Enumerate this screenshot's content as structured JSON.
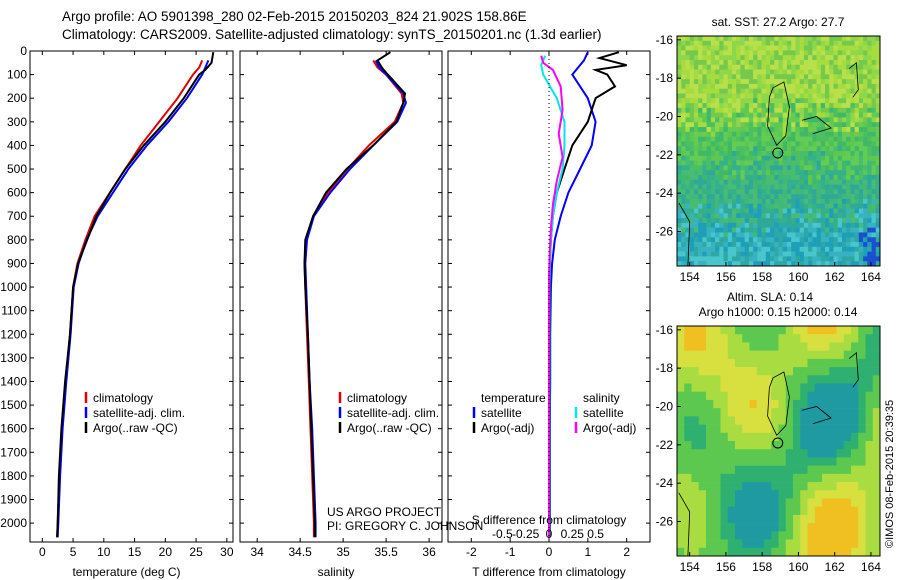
{
  "header": {
    "line1": "Argo profile: AO 5901398_280 02-Feb-2015 20150203_824 21.902S 158.86E",
    "line2": "Climatology: CARS2009. Satellite-adjusted climatology: synTS_20150201.nc (1.3d earlier)"
  },
  "colors": {
    "climatology": "#e00000",
    "satellite": "#0000ff",
    "argo": "#000000",
    "satellite_salinity": "#00e5ee",
    "argo_salinity": "#ff00ff"
  },
  "chart_data": [
    {
      "type": "line",
      "panel": "temperature",
      "xlabel": "temperature (deg C)",
      "ylabel": "",
      "xlim": [
        -2,
        31
      ],
      "ylim": [
        2080,
        0
      ],
      "xticks": [
        0,
        5,
        10,
        15,
        20,
        25,
        30
      ],
      "yticks": [
        0,
        100,
        200,
        300,
        400,
        500,
        600,
        700,
        800,
        900,
        1000,
        1100,
        1200,
        1300,
        1400,
        1500,
        1600,
        1700,
        1800,
        1900,
        2000
      ],
      "legend": [
        "climatology",
        "satellite-adj. clim.",
        "Argo(..raw -QC)"
      ],
      "series": [
        {
          "name": "climatology",
          "color": "#e00000",
          "points": [
            [
              26,
              40
            ],
            [
              25.5,
              70
            ],
            [
              24.5,
              100
            ],
            [
              22,
              200
            ],
            [
              19,
              300
            ],
            [
              16,
              400
            ],
            [
              13.5,
              500
            ],
            [
              11,
              600
            ],
            [
              8.5,
              700
            ],
            [
              7,
              800
            ],
            [
              5.7,
              900
            ],
            [
              5,
              1000
            ],
            [
              4.5,
              1200
            ],
            [
              3.8,
              1400
            ],
            [
              3.2,
              1600
            ],
            [
              2.8,
              1800
            ],
            [
              2.5,
              2000
            ],
            [
              2.4,
              2060
            ]
          ]
        },
        {
          "name": "satellite-adj. clim.",
          "color": "#0000ff",
          "points": [
            [
              27,
              40
            ],
            [
              26.5,
              70
            ],
            [
              26,
              100
            ],
            [
              23.5,
              200
            ],
            [
              20.5,
              300
            ],
            [
              17,
              400
            ],
            [
              14,
              500
            ],
            [
              11.5,
              600
            ],
            [
              9,
              700
            ],
            [
              7.2,
              800
            ],
            [
              5.9,
              900
            ],
            [
              5.1,
              1000
            ],
            [
              4.6,
              1200
            ],
            [
              3.9,
              1400
            ],
            [
              3.3,
              1600
            ],
            [
              2.9,
              1800
            ],
            [
              2.6,
              2000
            ],
            [
              2.5,
              2060
            ]
          ]
        },
        {
          "name": "Argo(..raw -QC)",
          "color": "#000000",
          "points": [
            [
              27.8,
              5
            ],
            [
              27.5,
              50
            ],
            [
              26.5,
              80
            ],
            [
              25.5,
              100
            ],
            [
              23,
              200
            ],
            [
              20,
              300
            ],
            [
              16.5,
              400
            ],
            [
              13.5,
              500
            ],
            [
              11,
              600
            ],
            [
              8.8,
              700
            ],
            [
              7.3,
              800
            ],
            [
              5.8,
              900
            ],
            [
              5.0,
              1000
            ],
            [
              4.5,
              1200
            ],
            [
              3.7,
              1400
            ],
            [
              3.1,
              1600
            ],
            [
              2.7,
              1800
            ],
            [
              2.5,
              2000
            ],
            [
              2.4,
              2060
            ]
          ]
        }
      ]
    },
    {
      "type": "line",
      "panel": "salinity",
      "xlabel": "salinity",
      "ylabel": "",
      "xlim": [
        33.8,
        36.15
      ],
      "ylim": [
        2080,
        0
      ],
      "xticks": [
        34,
        34.5,
        35,
        35.5,
        36
      ],
      "legend": [
        "climatology",
        "satellite-adj. clim.",
        "Argo(..raw -QC)"
      ],
      "series": [
        {
          "name": "climatology",
          "color": "#e00000",
          "points": [
            [
              35.35,
              40
            ],
            [
              35.4,
              70
            ],
            [
              35.5,
              100
            ],
            [
              35.68,
              180
            ],
            [
              35.7,
              220
            ],
            [
              35.6,
              300
            ],
            [
              35.3,
              400
            ],
            [
              35.05,
              500
            ],
            [
              34.82,
              600
            ],
            [
              34.65,
              700
            ],
            [
              34.57,
              800
            ],
            [
              34.55,
              900
            ],
            [
              34.56,
              1000
            ],
            [
              34.58,
              1200
            ],
            [
              34.6,
              1400
            ],
            [
              34.62,
              1600
            ],
            [
              34.64,
              1800
            ],
            [
              34.66,
              2000
            ],
            [
              34.66,
              2060
            ]
          ]
        },
        {
          "name": "satellite-adj. clim.",
          "color": "#0000ff",
          "points": [
            [
              35.38,
              40
            ],
            [
              35.42,
              70
            ],
            [
              35.5,
              100
            ],
            [
              35.7,
              180
            ],
            [
              35.73,
              220
            ],
            [
              35.63,
              300
            ],
            [
              35.35,
              400
            ],
            [
              35.08,
              500
            ],
            [
              34.85,
              600
            ],
            [
              34.66,
              700
            ],
            [
              34.58,
              800
            ],
            [
              34.56,
              900
            ],
            [
              34.57,
              1000
            ],
            [
              34.59,
              1200
            ],
            [
              34.61,
              1400
            ],
            [
              34.64,
              1600
            ],
            [
              34.66,
              1800
            ],
            [
              34.68,
              2000
            ],
            [
              34.68,
              2060
            ]
          ]
        },
        {
          "name": "Argo(..raw -QC)",
          "color": "#000000",
          "points": [
            [
              35.55,
              5
            ],
            [
              35.4,
              40
            ],
            [
              35.45,
              70
            ],
            [
              35.52,
              100
            ],
            [
              35.72,
              180
            ],
            [
              35.7,
              220
            ],
            [
              35.62,
              300
            ],
            [
              35.35,
              400
            ],
            [
              35.04,
              500
            ],
            [
              34.8,
              600
            ],
            [
              34.65,
              700
            ],
            [
              34.56,
              800
            ],
            [
              34.55,
              900
            ],
            [
              34.56,
              1000
            ],
            [
              34.59,
              1200
            ],
            [
              34.61,
              1400
            ],
            [
              34.63,
              1600
            ],
            [
              34.65,
              1800
            ],
            [
              34.67,
              2000
            ],
            [
              34.67,
              2060
            ]
          ]
        }
      ]
    },
    {
      "type": "line",
      "panel": "difference",
      "xlabel": "T difference from climatology",
      "xlabel2": "S difference from climatology",
      "xlim": [
        -2.6,
        2.6
      ],
      "ylim": [
        2080,
        0
      ],
      "xticks": [
        -2,
        -1,
        0,
        1,
        2
      ],
      "xticks2": [
        "-0.5",
        "-0.25",
        "0",
        "0.25",
        "0.5"
      ],
      "legend_temperature_title": "temperature",
      "legend_salinity_title": "salinity",
      "legend": [
        "satellite",
        "Argo(-adj)",
        "satellite",
        "Argo(-adj)"
      ],
      "series": [
        {
          "name": "satellite",
          "color": "#0000ff",
          "points": [
            [
              1,
              5
            ],
            [
              0.9,
              40
            ],
            [
              0.6,
              100
            ],
            [
              1.0,
              200
            ],
            [
              1.2,
              300
            ],
            [
              1.1,
              400
            ],
            [
              0.8,
              500
            ],
            [
              0.5,
              600
            ],
            [
              0.3,
              700
            ],
            [
              0.15,
              800
            ],
            [
              0.08,
              900
            ],
            [
              0.05,
              1000
            ],
            [
              0.03,
              1200
            ],
            [
              0.03,
              1400
            ],
            [
              0.02,
              1600
            ],
            [
              0.02,
              1800
            ],
            [
              0.02,
              2000
            ],
            [
              0.02,
              2060
            ]
          ]
        },
        {
          "name": "Argo(-adj)",
          "color": "#000000",
          "points": [
            [
              1.8,
              5
            ],
            [
              1.3,
              30
            ],
            [
              2.0,
              60
            ],
            [
              1.2,
              80
            ],
            [
              1.5,
              100
            ],
            [
              1.7,
              150
            ],
            [
              1.2,
              200
            ],
            [
              1.0,
              300
            ],
            [
              0.6,
              400
            ],
            [
              0.4,
              500
            ],
            [
              0.2,
              600
            ],
            [
              0.1,
              700
            ],
            [
              0.05,
              800
            ],
            [
              0.02,
              900
            ],
            [
              0.02,
              1000
            ],
            [
              0.02,
              1200
            ],
            [
              0.02,
              1400
            ],
            [
              0.02,
              1600
            ],
            [
              0.02,
              1800
            ],
            [
              0.02,
              2000
            ],
            [
              0.02,
              2060
            ]
          ]
        },
        {
          "name": "satellite",
          "color": "#00e5ee",
          "points": [
            [
              -0.1,
              20
            ],
            [
              -0.2,
              60
            ],
            [
              -0.15,
              100
            ],
            [
              0.2,
              200
            ],
            [
              0.4,
              300
            ],
            [
              0.4,
              400
            ],
            [
              0.35,
              500
            ],
            [
              0.2,
              600
            ],
            [
              0.1,
              700
            ],
            [
              0.05,
              800
            ],
            [
              0.02,
              900
            ],
            [
              0.01,
              1000
            ],
            [
              0.01,
              1200
            ],
            [
              0.01,
              1400
            ],
            [
              0.01,
              1600
            ],
            [
              0.01,
              1800
            ],
            [
              0.01,
              2000
            ],
            [
              0.01,
              2060
            ]
          ]
        },
        {
          "name": "Argo(-adj)",
          "color": "#ff00ff",
          "points": [
            [
              -0.2,
              20
            ],
            [
              -0.15,
              50
            ],
            [
              0.1,
              80
            ],
            [
              0.3,
              150
            ],
            [
              0.35,
              250
            ],
            [
              0.25,
              350
            ],
            [
              0.35,
              450
            ],
            [
              0.2,
              550
            ],
            [
              0.1,
              650
            ],
            [
              0.05,
              750
            ],
            [
              0.02,
              850
            ],
            [
              0.0,
              950
            ],
            [
              0.0,
              1100
            ],
            [
              0.0,
              1300
            ],
            [
              0.0,
              1500
            ],
            [
              0.0,
              1700
            ],
            [
              0.0,
              1900
            ],
            [
              0.0,
              2060
            ]
          ]
        }
      ]
    },
    {
      "type": "heatmap",
      "panel": "sst_map",
      "title": "sat. SST: 27.2  Argo: 27.7",
      "xlim": [
        153.3,
        164.5
      ],
      "ylim": [
        -27.8,
        -15.8
      ],
      "xticks": [
        154,
        156,
        158,
        160,
        162,
        164
      ],
      "yticks": [
        -16,
        -18,
        -20,
        -22,
        -24,
        -26
      ]
    },
    {
      "type": "heatmap",
      "panel": "sla_map",
      "title": "Altim. SLA: 0.14",
      "subtitle": "Argo h1000: 0.15 h2000: 0.14",
      "xlim": [
        153.3,
        164.5
      ],
      "ylim": [
        -27.8,
        -15.8
      ],
      "xticks": [
        154,
        156,
        158,
        160,
        162,
        164
      ],
      "yticks": [
        -16,
        -18,
        -20,
        -22,
        -24,
        -26
      ]
    }
  ],
  "annotations": {
    "project": "US ARGO PROJECT",
    "pi": "PI: GREGORY C. JOHNSON",
    "stamp": "©IMOS 08-Feb-2015 20:39:35"
  },
  "float_position": {
    "lon": 158.86,
    "lat": -21.902
  }
}
